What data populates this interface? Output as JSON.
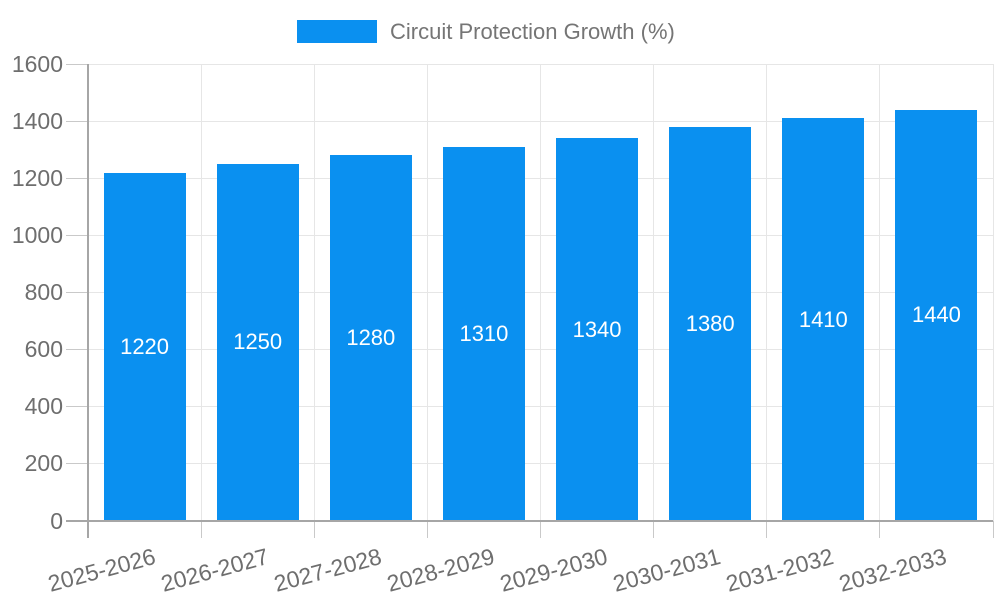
{
  "chart_data": {
    "type": "bar",
    "title": "Circuit Protection Growth (%)",
    "legend": {
      "position": "top",
      "entries": [
        "Circuit Protection Growth (%)"
      ]
    },
    "categories": [
      "2025-2026",
      "2026-2027",
      "2027-2028",
      "2028-2029",
      "2029-2030",
      "2030-2031",
      "2031-2032",
      "2032-2033"
    ],
    "series": [
      {
        "name": "Circuit Protection Growth (%)",
        "values": [
          1220,
          1250,
          1280,
          1310,
          1340,
          1380,
          1410,
          1440
        ]
      }
    ],
    "value_labels": [
      "1220",
      "1250",
      "1280",
      "1310",
      "1340",
      "1380",
      "1410",
      "1440"
    ],
    "value_label_position": "inside-center",
    "xlabel": "",
    "ylabel": "",
    "ylim": [
      0,
      1600
    ],
    "ytick_step": 200,
    "yticks": [
      0,
      200,
      400,
      600,
      800,
      1000,
      1200,
      1400,
      1600
    ],
    "xtick_rotation_deg": -15,
    "grid": true,
    "colors": {
      "bar": "#0a90f0",
      "value_label": "#ffffff",
      "axis_text": "#6e6e6e",
      "legend_text": "#757575",
      "gridline": "#e6e6e6",
      "tick": "#c9c9c9",
      "axis_line": "#a6a6a6",
      "background": "#ffffff"
    }
  }
}
